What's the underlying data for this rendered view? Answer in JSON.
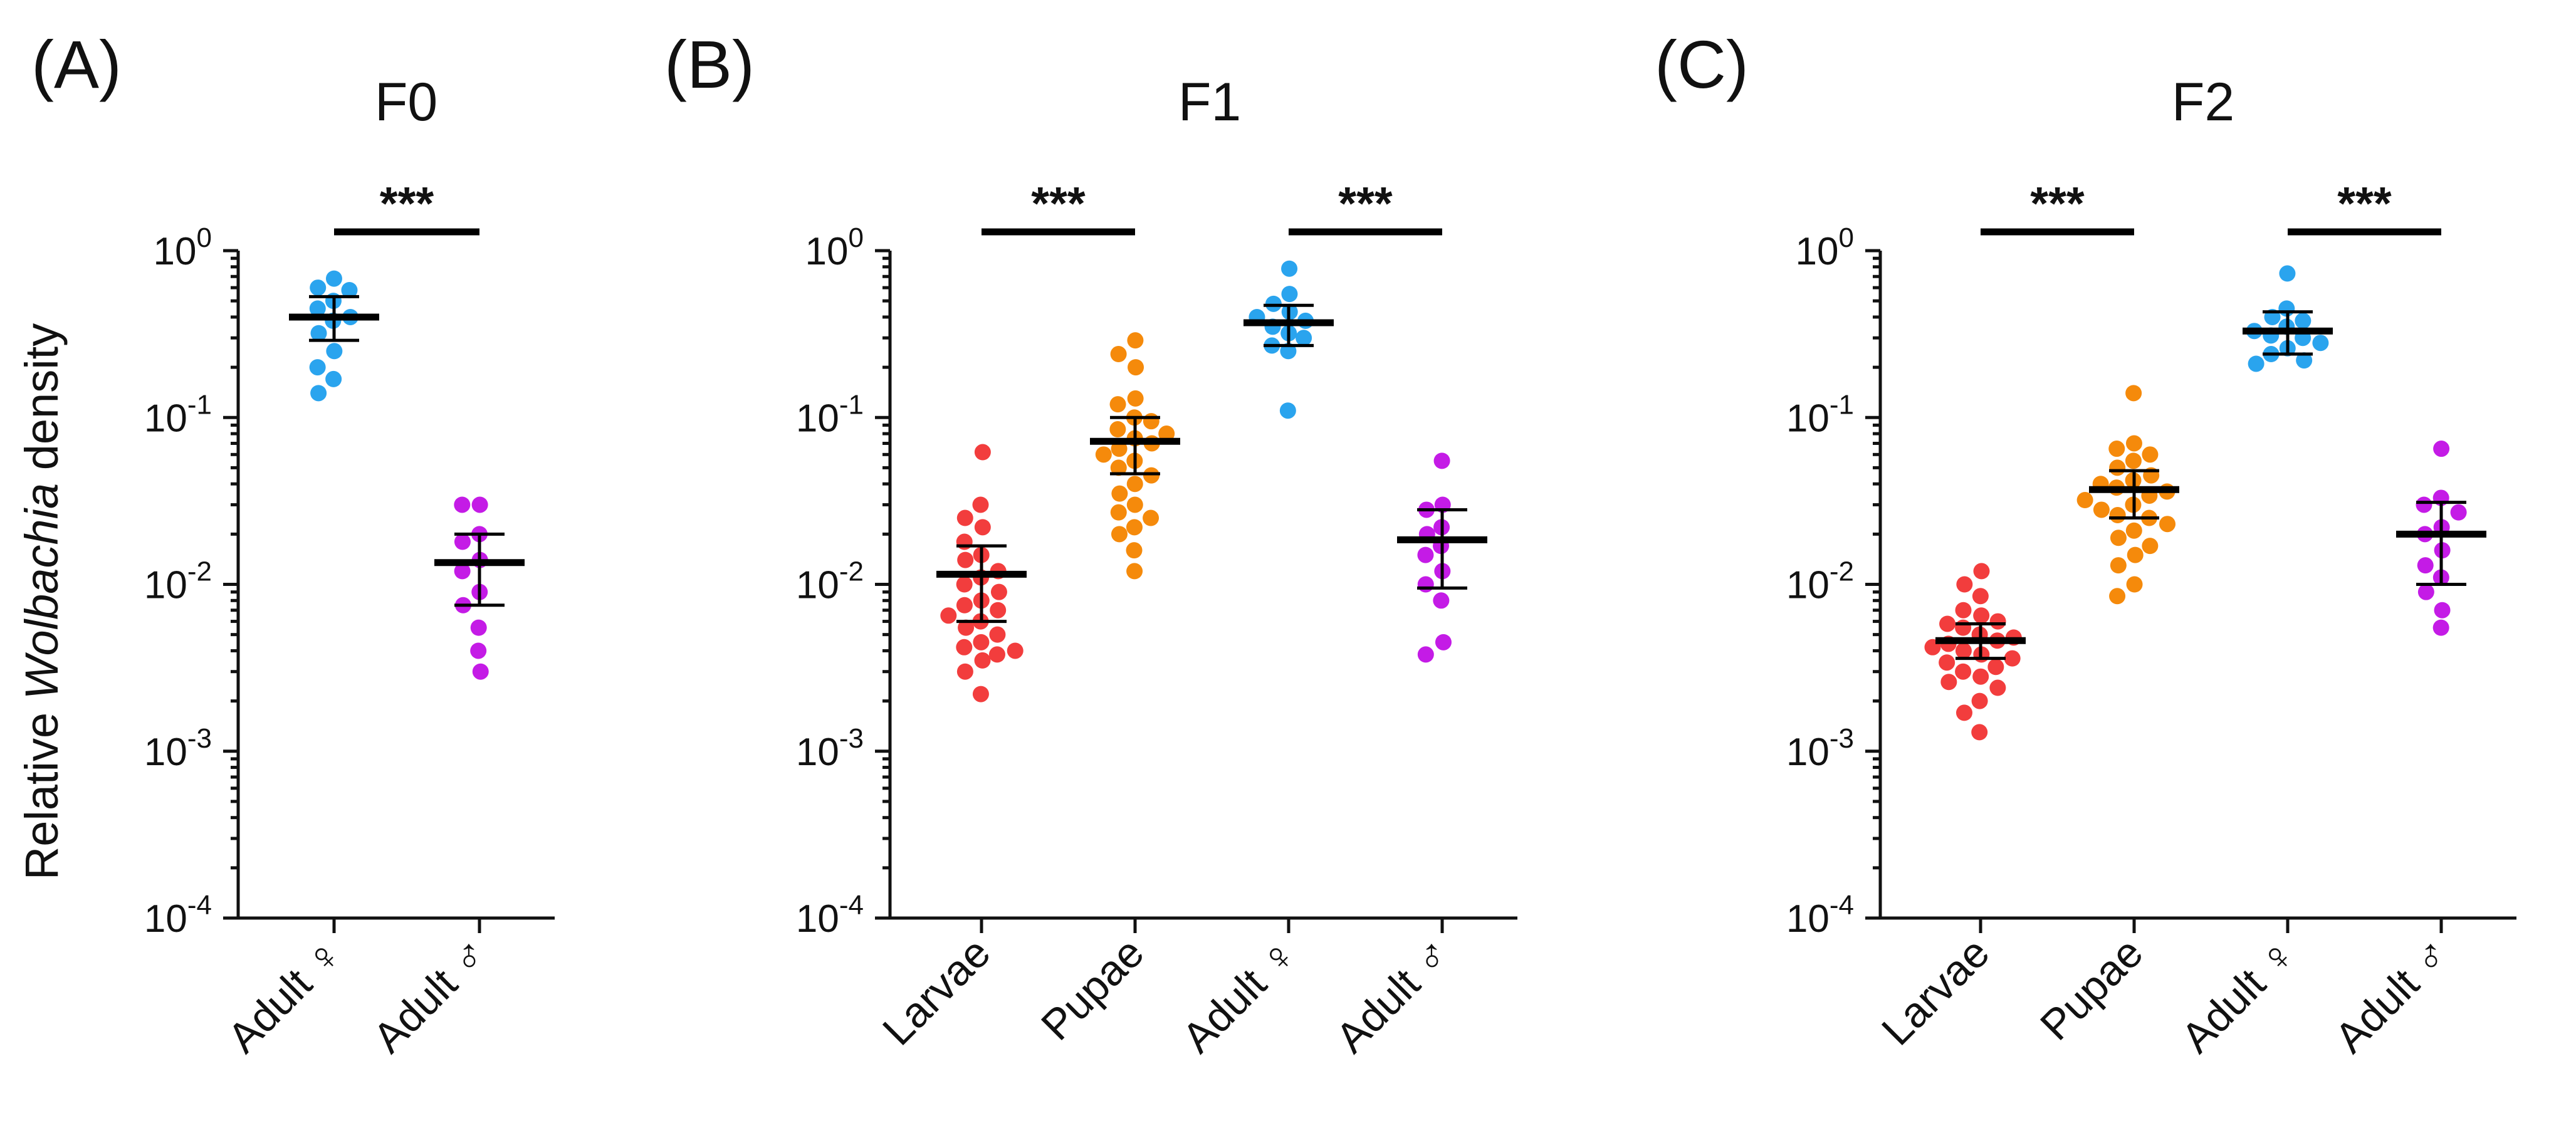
{
  "ylabel_prefix": "Relative ",
  "ylabel_italic": "Wolbachia",
  "ylabel_suffix": " density",
  "chart_data": [
    {
      "type": "scatter",
      "panel_label": "(A)",
      "title": "F0",
      "yscale": "log",
      "ylim": [
        0.0001,
        1
      ],
      "yticks": [
        {
          "base": "10",
          "exp": "0"
        },
        {
          "base": "10",
          "exp": "-1"
        },
        {
          "base": "10",
          "exp": "-2"
        },
        {
          "base": "10",
          "exp": "-3"
        },
        {
          "base": "10",
          "exp": "-4"
        }
      ],
      "categories": [
        "Adult ♀",
        "Adult ♂"
      ],
      "groups": [
        {
          "name": "Adult ♀",
          "color": "#2AA4EE",
          "values": [
            0.68,
            0.6,
            0.58,
            0.5,
            0.45,
            0.4,
            0.38,
            0.32,
            0.25,
            0.2,
            0.17,
            0.14
          ],
          "median": 0.4,
          "err_low": 0.29,
          "err_high": 0.53
        },
        {
          "name": "Adult ♂",
          "color": "#C41BE6",
          "values": [
            0.03,
            0.03,
            0.02,
            0.018,
            0.014,
            0.012,
            0.009,
            0.0075,
            0.0055,
            0.004,
            0.003
          ],
          "median": 0.0135,
          "err_low": 0.0075,
          "err_high": 0.02
        }
      ],
      "significance": [
        {
          "from": 0,
          "to": 1,
          "label": "***"
        }
      ]
    },
    {
      "type": "scatter",
      "panel_label": "(B)",
      "title": "F1",
      "yscale": "log",
      "ylim": [
        0.0001,
        1
      ],
      "yticks": [
        {
          "base": "10",
          "exp": "0"
        },
        {
          "base": "10",
          "exp": "-1"
        },
        {
          "base": "10",
          "exp": "-2"
        },
        {
          "base": "10",
          "exp": "-3"
        },
        {
          "base": "10",
          "exp": "-4"
        }
      ],
      "categories": [
        "Larvae",
        "Pupae",
        "Adult ♀",
        "Adult ♂"
      ],
      "groups": [
        {
          "name": "Larvae",
          "color": "#F23D3D",
          "values": [
            0.062,
            0.03,
            0.025,
            0.022,
            0.018,
            0.015,
            0.014,
            0.012,
            0.011,
            0.01,
            0.009,
            0.008,
            0.0075,
            0.007,
            0.0065,
            0.006,
            0.0055,
            0.005,
            0.0045,
            0.0042,
            0.004,
            0.0038,
            0.0035,
            0.003,
            0.0022
          ],
          "median": 0.0115,
          "err_low": 0.006,
          "err_high": 0.017
        },
        {
          "name": "Pupae",
          "color": "#F58A0B",
          "values": [
            0.29,
            0.24,
            0.2,
            0.13,
            0.12,
            0.1,
            0.095,
            0.085,
            0.08,
            0.075,
            0.07,
            0.065,
            0.06,
            0.055,
            0.05,
            0.045,
            0.04,
            0.035,
            0.03,
            0.027,
            0.025,
            0.022,
            0.02,
            0.016,
            0.012
          ],
          "median": 0.072,
          "err_low": 0.046,
          "err_high": 0.1
        },
        {
          "name": "Adult ♀",
          "color": "#2AA4EE",
          "values": [
            0.78,
            0.55,
            0.48,
            0.43,
            0.4,
            0.38,
            0.35,
            0.32,
            0.3,
            0.27,
            0.25,
            0.11
          ],
          "median": 0.37,
          "err_low": 0.27,
          "err_high": 0.47
        },
        {
          "name": "Adult ♂",
          "color": "#C41BE6",
          "values": [
            0.055,
            0.03,
            0.028,
            0.022,
            0.02,
            0.017,
            0.015,
            0.012,
            0.01,
            0.008,
            0.0045,
            0.0038
          ],
          "median": 0.0185,
          "err_low": 0.0095,
          "err_high": 0.028
        }
      ],
      "significance": [
        {
          "from": 0,
          "to": 1,
          "label": "***"
        },
        {
          "from": 2,
          "to": 3,
          "label": "***"
        }
      ]
    },
    {
      "type": "scatter",
      "panel_label": "(C)",
      "title": "F2",
      "yscale": "log",
      "ylim": [
        0.0001,
        1
      ],
      "yticks": [
        {
          "base": "10",
          "exp": "0"
        },
        {
          "base": "10",
          "exp": "-1"
        },
        {
          "base": "10",
          "exp": "-2"
        },
        {
          "base": "10",
          "exp": "-3"
        },
        {
          "base": "10",
          "exp": "-4"
        }
      ],
      "categories": [
        "Larvae",
        "Pupae",
        "Adult ♀",
        "Adult ♂"
      ],
      "groups": [
        {
          "name": "Larvae",
          "color": "#F23D3D",
          "values": [
            0.012,
            0.01,
            0.0085,
            0.007,
            0.0065,
            0.006,
            0.0058,
            0.0055,
            0.005,
            0.0048,
            0.0046,
            0.0044,
            0.0042,
            0.004,
            0.0038,
            0.0036,
            0.0034,
            0.0032,
            0.003,
            0.0028,
            0.0026,
            0.0024,
            0.002,
            0.0017,
            0.0013
          ],
          "median": 0.0046,
          "err_low": 0.0036,
          "err_high": 0.0058
        },
        {
          "name": "Pupae",
          "color": "#F58A0B",
          "values": [
            0.14,
            0.07,
            0.065,
            0.06,
            0.055,
            0.05,
            0.045,
            0.042,
            0.04,
            0.038,
            0.036,
            0.034,
            0.032,
            0.03,
            0.028,
            0.026,
            0.025,
            0.023,
            0.021,
            0.019,
            0.017,
            0.015,
            0.013,
            0.01,
            0.0085
          ],
          "median": 0.037,
          "err_low": 0.025,
          "err_high": 0.048
        },
        {
          "name": "Adult ♀",
          "color": "#2AA4EE",
          "values": [
            0.73,
            0.45,
            0.4,
            0.38,
            0.35,
            0.33,
            0.31,
            0.3,
            0.28,
            0.26,
            0.24,
            0.22,
            0.21
          ],
          "median": 0.33,
          "err_low": 0.24,
          "err_high": 0.43
        },
        {
          "name": "Adult ♂",
          "color": "#C41BE6",
          "values": [
            0.065,
            0.033,
            0.03,
            0.027,
            0.022,
            0.02,
            0.016,
            0.013,
            0.011,
            0.009,
            0.007,
            0.0055
          ],
          "median": 0.02,
          "err_low": 0.01,
          "err_high": 0.031
        }
      ],
      "significance": [
        {
          "from": 0,
          "to": 1,
          "label": "***"
        },
        {
          "from": 2,
          "to": 3,
          "label": "***"
        }
      ]
    }
  ]
}
